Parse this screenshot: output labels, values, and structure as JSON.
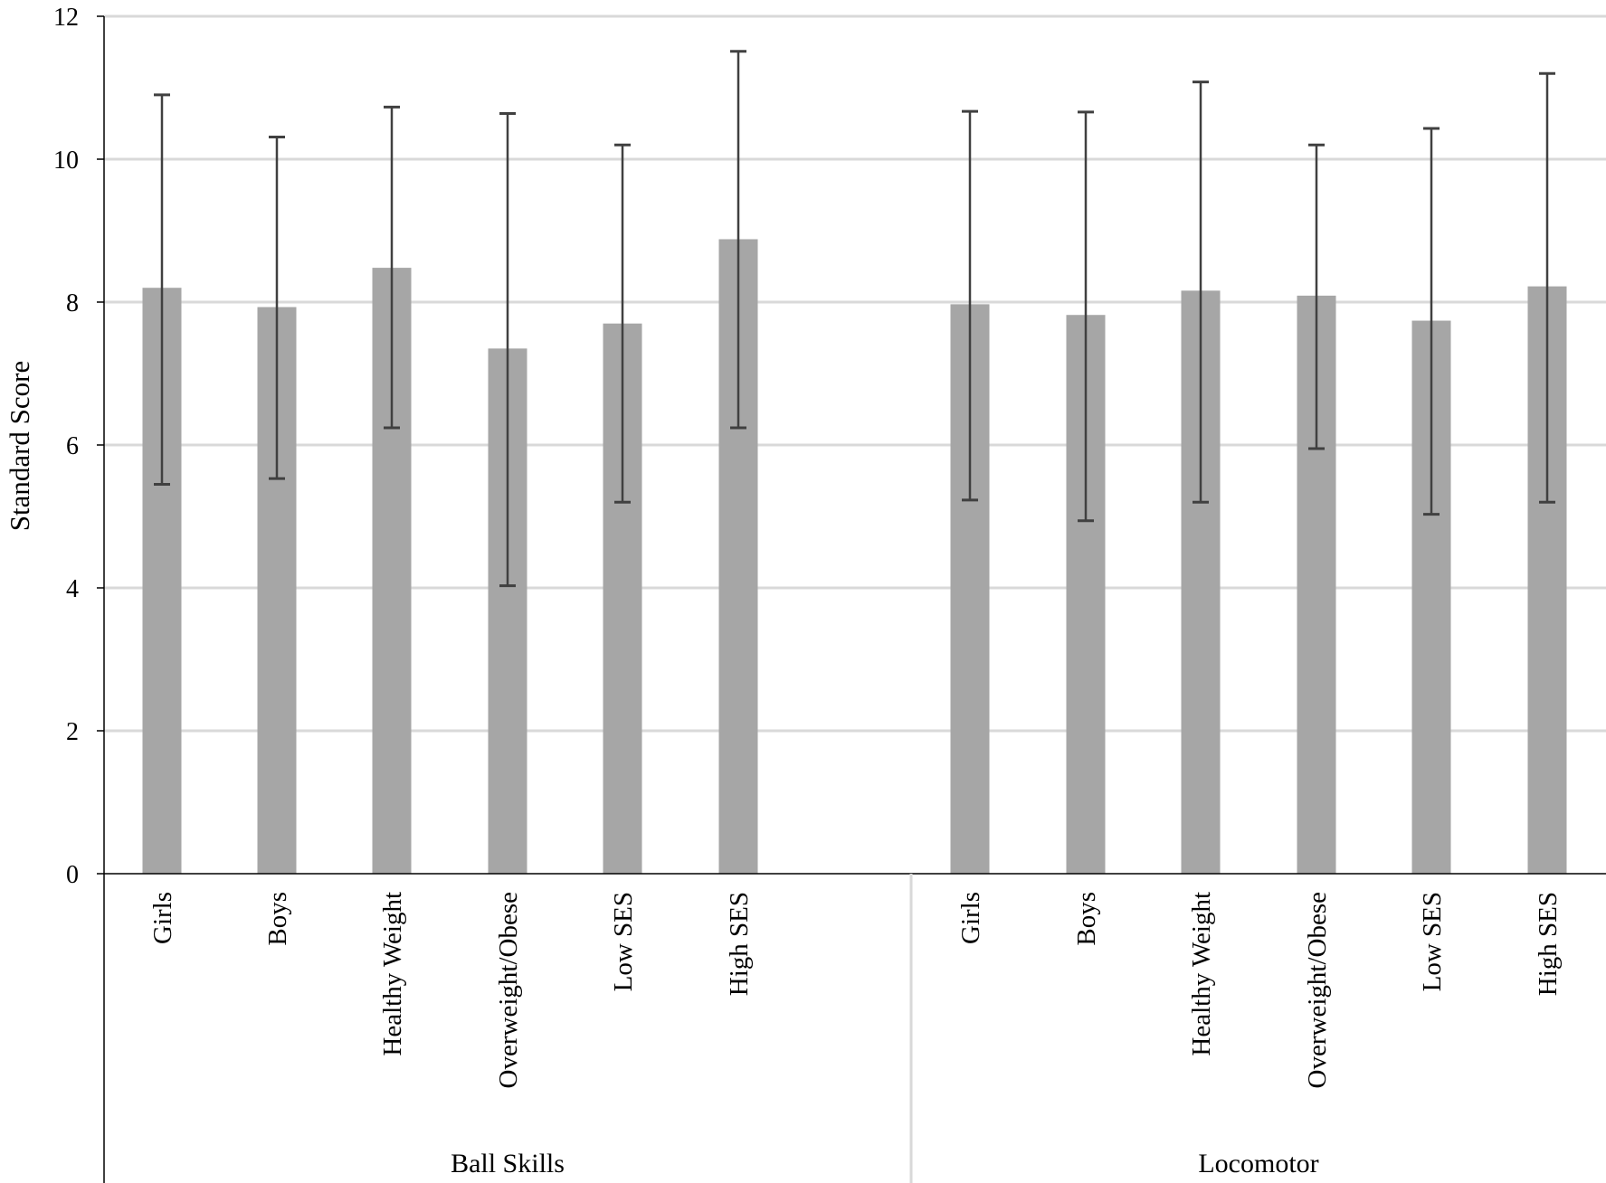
{
  "chart_data": {
    "type": "bar",
    "title": "",
    "xlabel": "",
    "ylabel": "Standard Score",
    "ylim": [
      0,
      12
    ],
    "y_ticks": [
      "0",
      "2",
      "4",
      "6",
      "8",
      "10",
      "12"
    ],
    "grid": true,
    "legend": "none",
    "error_bars": true,
    "groups": [
      {
        "name": "Ball Skills",
        "categories": [
          "Girls",
          "Boys",
          "Healthy Weight",
          "Overweight/Obese",
          "Low SES",
          "High SES"
        ],
        "values": [
          8.2,
          7.93,
          8.48,
          7.35,
          7.7,
          8.88
        ],
        "error_low": [
          5.45,
          5.53,
          6.24,
          4.03,
          5.2,
          6.24
        ],
        "error_high": [
          10.9,
          10.31,
          10.73,
          10.64,
          10.2,
          11.51
        ]
      },
      {
        "name": "Locomotor",
        "categories": [
          "Girls",
          "Boys",
          "Healthy Weight",
          "Overweight/Obese",
          "Low SES",
          "High SES"
        ],
        "values": [
          7.97,
          7.82,
          8.16,
          8.09,
          7.74,
          8.22
        ],
        "error_low": [
          5.23,
          4.94,
          5.2,
          5.95,
          5.03,
          5.2
        ],
        "error_high": [
          10.67,
          10.66,
          11.08,
          10.2,
          10.43,
          11.2
        ]
      }
    ],
    "colors": {
      "bar": "#a6a6a6",
      "error_bar": "#404040",
      "gridline": "#d9d9d9",
      "axis": "#000000",
      "separator": "#d9d9d9"
    }
  }
}
